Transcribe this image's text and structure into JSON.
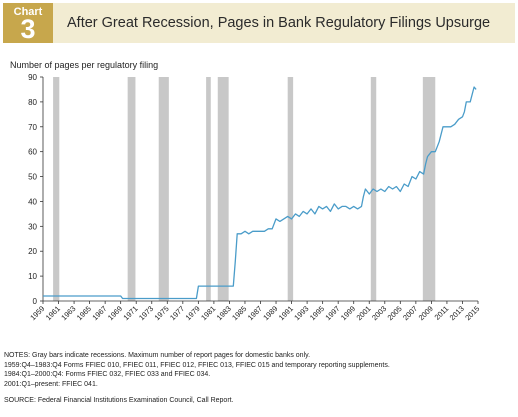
{
  "header": {
    "chart_word": "Chart",
    "chart_number": "3",
    "title": "After Great Recession, Pages in Bank Regulatory Filings Upsurge"
  },
  "colors": {
    "header_bg": "#f2ecd2",
    "badge_bg": "#c7a74c",
    "line": "#4a9cc9",
    "recession_bar": "#c8c8c8"
  },
  "chart_data": {
    "type": "line",
    "title": "After Great Recession, Pages in Bank Regulatory Filings Upsurge",
    "ylabel": "Number of pages per regulatory filing",
    "xlabel": "",
    "ylim": [
      0,
      90
    ],
    "yticks": [
      0,
      10,
      20,
      30,
      40,
      50,
      60,
      70,
      80,
      90
    ],
    "xlim": [
      1959,
      2015
    ],
    "xticks": [
      "1959",
      "1961",
      "1963",
      "1965",
      "1967",
      "1969",
      "1971",
      "1973",
      "1975",
      "1977",
      "1979",
      "1981",
      "1983",
      "1985",
      "1987",
      "1989",
      "1991",
      "1993",
      "1995",
      "1997",
      "1999",
      "2001",
      "2003",
      "2005",
      "2007",
      "2009",
      "2011",
      "2013",
      "2015"
    ],
    "recessions": [
      [
        1960.3,
        1961.1
      ],
      [
        1969.9,
        1970.9
      ],
      [
        1973.9,
        1975.2
      ],
      [
        1980.0,
        1980.6
      ],
      [
        1981.5,
        1982.9
      ],
      [
        1990.5,
        1991.2
      ],
      [
        2001.2,
        2001.9
      ],
      [
        2007.9,
        2009.5
      ]
    ],
    "grid": false,
    "legend": "none",
    "series": [
      {
        "x": [
          1959,
          1969.0,
          1969.25,
          1970,
          1978.75,
          1979.0,
          1983.5,
          1983.75,
          1984.0,
          1984.5,
          1985,
          1985.5,
          1986,
          1986.5,
          1987,
          1987.5,
          1988,
          1988.5,
          1989,
          1989.5,
          1990,
          1990.5,
          1991,
          1991.5,
          1992,
          1992.5,
          1993,
          1993.5,
          1994,
          1994.5,
          1995,
          1995.5,
          1996,
          1996.5,
          1997,
          1997.5,
          1998,
          1998.5,
          1999,
          1999.5,
          2000,
          2000.25,
          2000.5,
          2001,
          2001.5,
          2002,
          2002.5,
          2003,
          2003.5,
          2004,
          2004.5,
          2005,
          2005.5,
          2006,
          2006.5,
          2007,
          2007.5,
          2008,
          2008.25,
          2008.5,
          2009,
          2009.5,
          2010,
          2010.5,
          2011,
          2011.5,
          2012,
          2012.5,
          2013,
          2013.25,
          2013.5,
          2014,
          2014.5,
          2014.75
        ],
        "y": [
          2,
          2,
          1,
          1,
          1,
          6,
          6,
          16,
          27,
          27,
          28,
          27,
          28,
          28,
          28,
          28,
          29,
          29,
          33,
          32,
          33,
          34,
          33,
          35,
          34,
          36,
          35,
          37,
          35,
          38,
          37,
          38,
          36,
          39,
          37,
          38,
          38,
          37,
          38,
          37,
          38,
          42,
          45,
          43,
          45,
          44,
          45,
          44,
          46,
          45,
          46,
          44,
          47,
          46,
          50,
          49,
          52,
          51,
          55,
          58,
          60,
          60,
          64,
          70,
          70,
          70,
          71,
          73,
          74,
          76,
          80,
          80,
          86,
          85
        ]
      }
    ]
  },
  "notes": [
    "NOTES: Gray bars indicate recessions. Maximum number of report pages for domestic banks only.",
    "1959:Q4–1983:Q4 Forms FFIEC 010, FFIEC 011, FFIEC 012, FFIEC 013, FFIEC 015 and temporary reporting supplements.",
    "1984:Q1–2000:Q4: Forms FFIEC 032, FFIEC 033 and FFIEC 034.",
    "2001:Q1–present: FFIEC 041."
  ],
  "source": "SOURCE: Federal Financial Institutions Examination Council, Call Report."
}
